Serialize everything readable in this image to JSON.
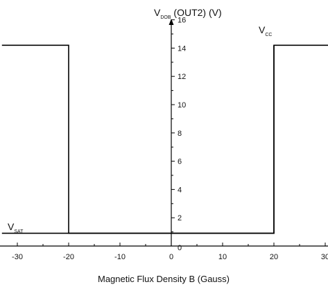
{
  "chart_data": {
    "type": "line",
    "xlabel": "Magnetic Flux Density B (Gauss)",
    "ylabel": {
      "main": "V",
      "sub": "DOB",
      "rest": " (OUT2) (V)"
    },
    "xlim": [
      -30,
      30
    ],
    "ylim": [
      0,
      16
    ],
    "x_ticks": [
      -30,
      -20,
      -10,
      0,
      10,
      20,
      30
    ],
    "y_ticks": [
      0,
      2,
      4,
      6,
      8,
      10,
      12,
      14,
      16
    ],
    "grid": false,
    "series": [
      {
        "x": [
          -33,
          -20,
          -20,
          20,
          20,
          33
        ],
        "y": [
          14.2,
          14.2,
          0.9,
          0.9,
          14.2,
          14.2
        ]
      },
      {
        "x": [
          -33,
          -20,
          20,
          20
        ],
        "y": [
          0.9,
          0.9,
          0.9,
          14.2
        ]
      }
    ],
    "annotations": [
      {
        "main": "V",
        "sub": "CC",
        "x": 17.5,
        "y": 14.6
      },
      {
        "main": "V",
        "sub": "SAT",
        "x": -31.5,
        "y": 0.9
      }
    ]
  }
}
